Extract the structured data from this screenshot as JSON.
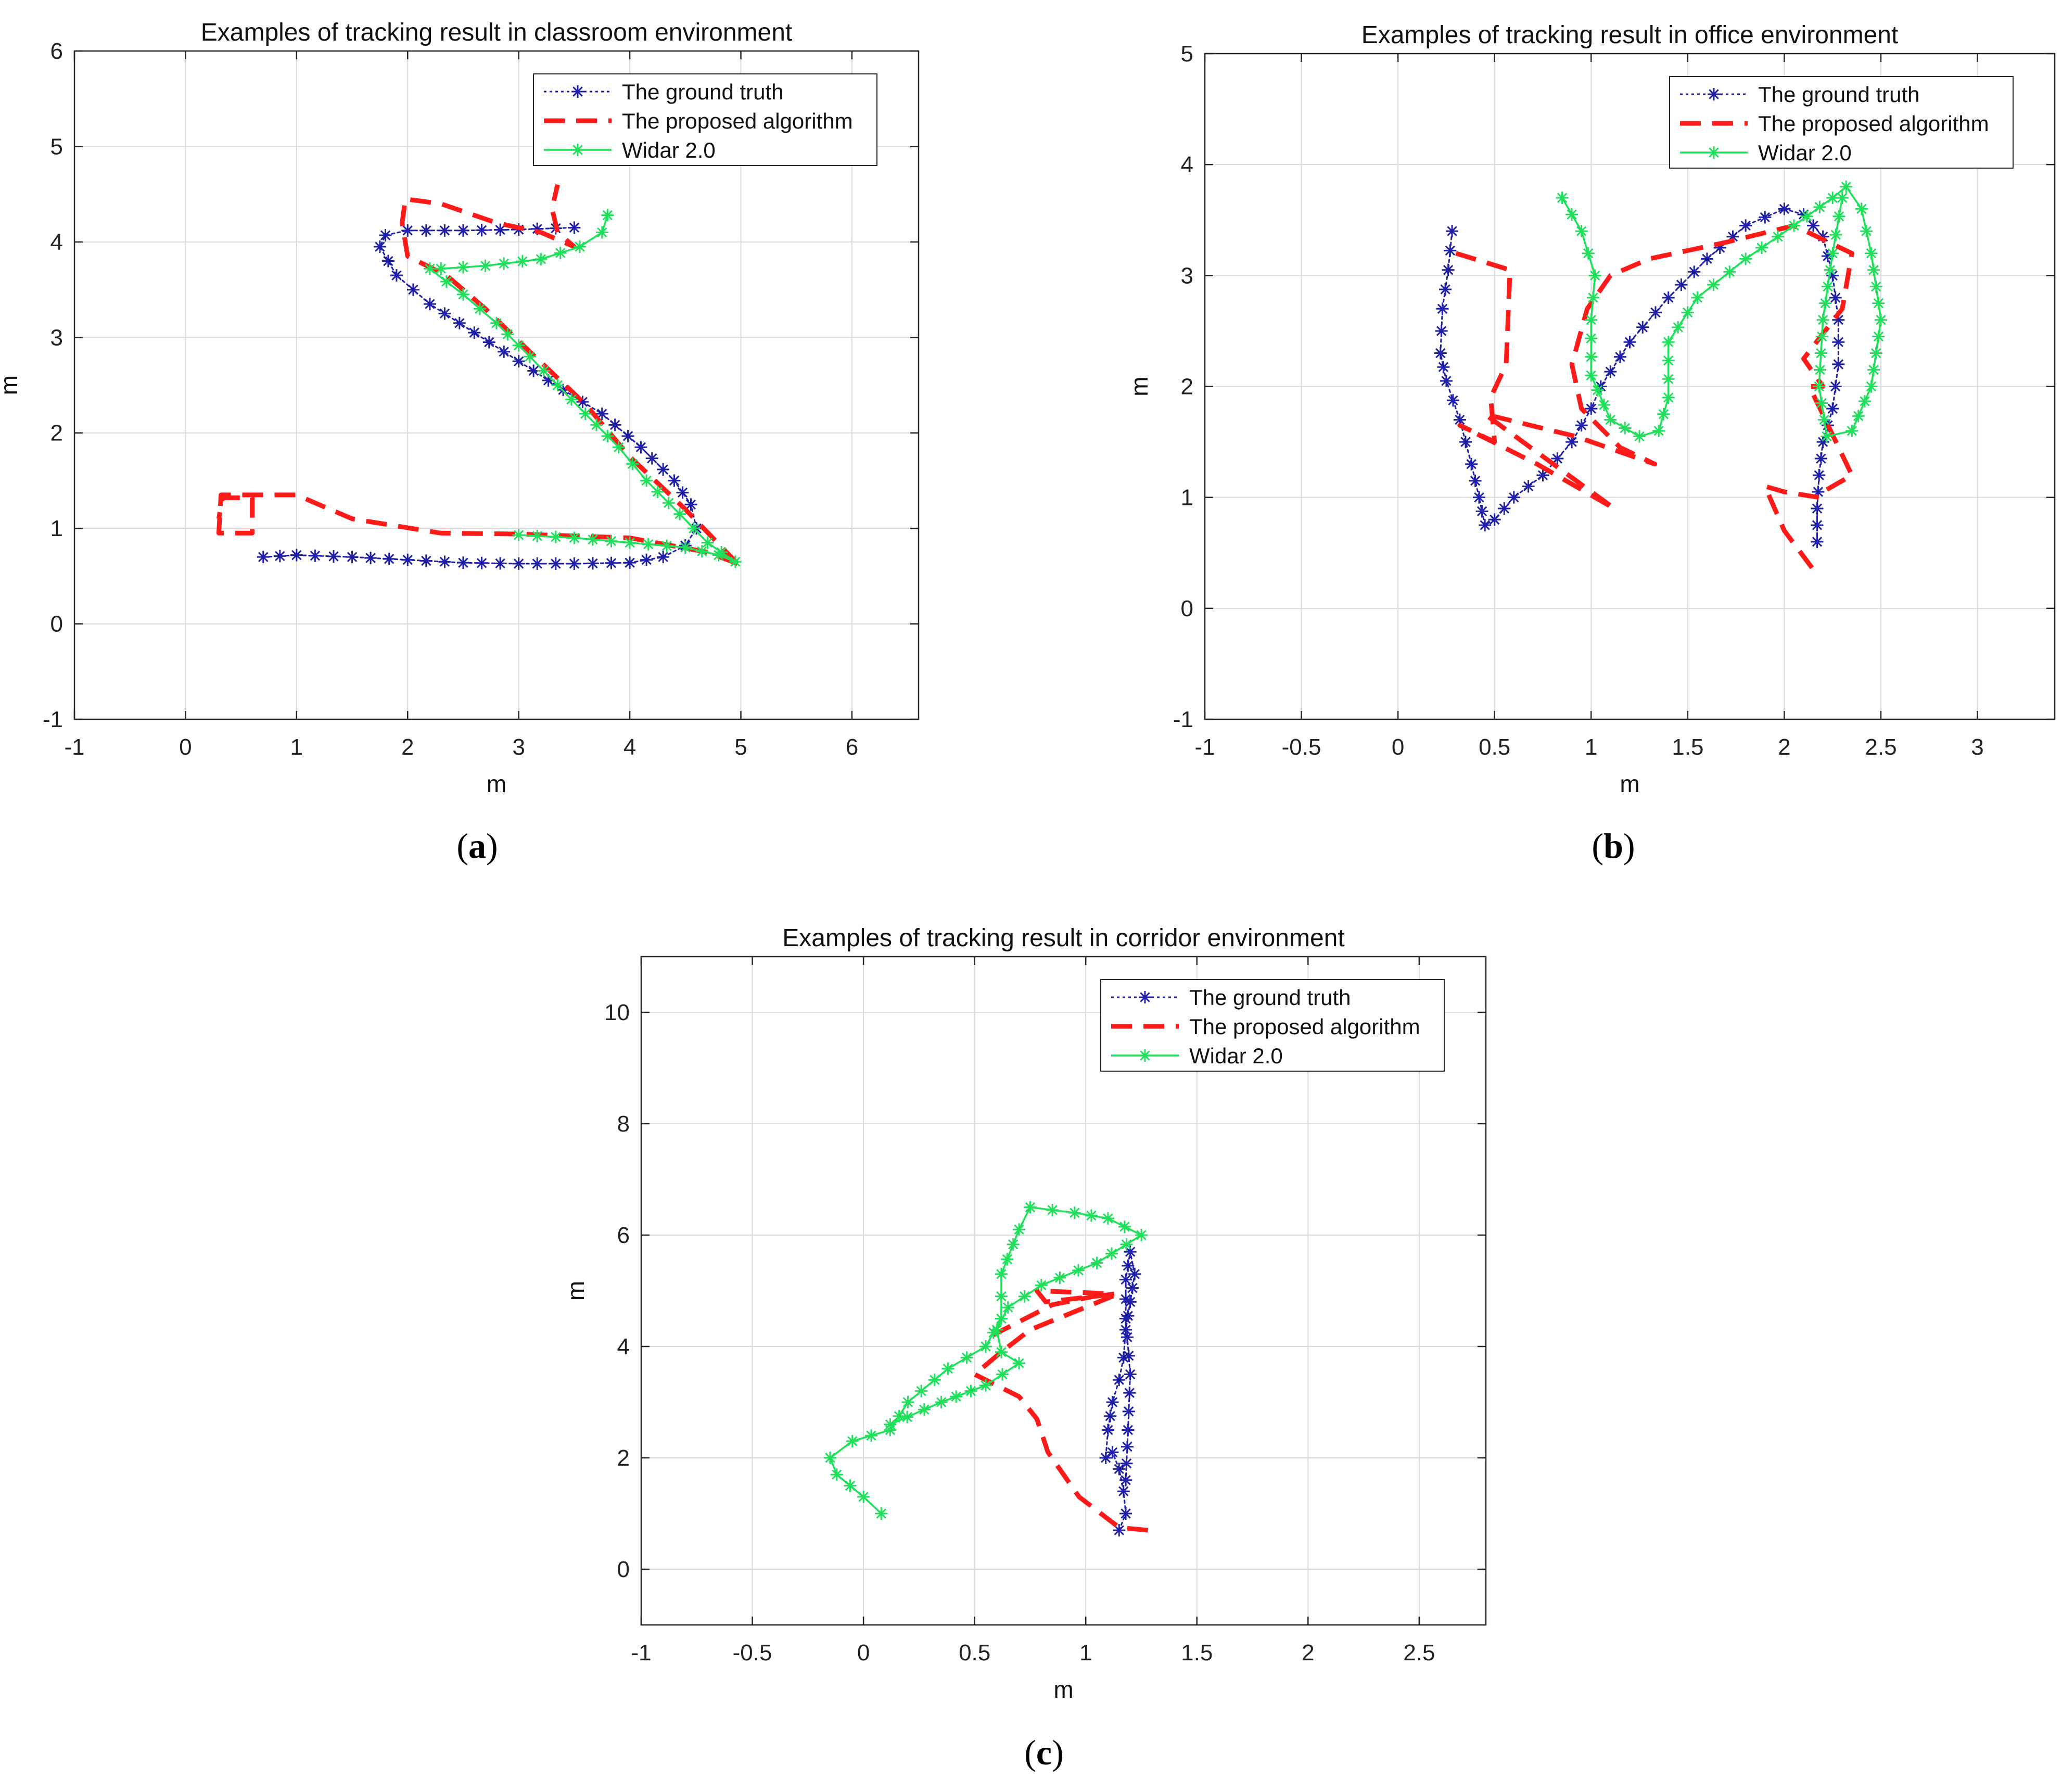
{
  "figure": {
    "subcaptions": [
      {
        "open": "(",
        "letter": "a",
        "close": ")"
      },
      {
        "open": "(",
        "letter": "b",
        "close": ")"
      },
      {
        "open": "(",
        "letter": "c",
        "close": ")"
      }
    ]
  },
  "colors": {
    "ground_truth": "#1f1fa8",
    "proposed": "#ff1a1a",
    "widar": "#1fe05a",
    "grid": "#dadada",
    "axis": "#262626"
  },
  "chart_data": [
    {
      "type": "line",
      "title": "Examples of  tracking result in classroom environment",
      "xlabel": "m",
      "ylabel": "m",
      "xlim": [
        -1,
        6.6
      ],
      "ylim": [
        -1,
        6
      ],
      "xticks": [
        -1,
        0,
        1,
        2,
        3,
        4,
        5,
        6
      ],
      "yticks": [
        -1,
        0,
        1,
        2,
        3,
        4,
        5,
        6
      ],
      "legend": "top-right",
      "series": [
        {
          "name": "The ground truth",
          "style": "dotted-star",
          "color": "#1f1fa8",
          "x": [
            0.7,
            1.0,
            1.5,
            2.0,
            2.5,
            3.0,
            3.5,
            4.0,
            4.3,
            4.5,
            4.6,
            4.55,
            4.4,
            4.1,
            3.75,
            3.4,
            3.0,
            2.6,
            2.2,
            1.9,
            1.75,
            1.8,
            2.0,
            2.5,
            3.0,
            3.5
          ],
          "y": [
            0.7,
            0.72,
            0.7,
            0.67,
            0.64,
            0.63,
            0.63,
            0.64,
            0.7,
            0.82,
            1.0,
            1.25,
            1.5,
            1.85,
            2.2,
            2.45,
            2.75,
            3.05,
            3.35,
            3.65,
            3.95,
            4.07,
            4.12,
            4.12,
            4.13,
            4.15
          ]
        },
        {
          "name": "The proposed algorithm",
          "style": "dashed",
          "color": "#ff1a1a",
          "x": [
            4.97,
            4.7,
            4.0,
            3.0,
            2.3,
            1.5,
            1.0,
            0.32,
            0.3,
            0.6,
            0.6,
            0.33,
            0.3
          ],
          "y": [
            0.63,
            0.75,
            0.9,
            0.94,
            0.95,
            1.1,
            1.35,
            1.35,
            0.95,
            0.95,
            1.32,
            1.32,
            1.1
          ],
          "x2": [
            4.97,
            4.5,
            4.0,
            3.6,
            3.1,
            2.7,
            2.35,
            2.0,
            1.95,
            1.98,
            2.3,
            2.8,
            3.2,
            3.5,
            3.35,
            3.3,
            3.35
          ],
          "y2": [
            0.63,
            1.2,
            1.75,
            2.3,
            2.85,
            3.3,
            3.65,
            3.85,
            4.2,
            4.45,
            4.4,
            4.2,
            4.1,
            3.95,
            4.1,
            4.35,
            4.6
          ]
        },
        {
          "name": "Widar 2.0",
          "style": "solid-star",
          "color": "#1fe05a",
          "x": [
            3.0,
            3.5,
            4.0,
            4.5,
            4.8,
            4.95,
            4.7,
            4.45,
            4.15,
            3.9,
            3.6,
            3.35,
            3.1,
            2.8,
            2.5,
            2.2,
            2.3,
            2.7,
            3.2,
            3.55,
            3.75,
            3.8
          ],
          "y": [
            0.93,
            0.9,
            0.85,
            0.8,
            0.72,
            0.65,
            0.85,
            1.15,
            1.5,
            1.85,
            2.2,
            2.5,
            2.8,
            3.15,
            3.45,
            3.72,
            3.72,
            3.75,
            3.82,
            3.95,
            4.1,
            4.28
          ]
        }
      ]
    },
    {
      "type": "line",
      "title": "Examples of  tracking result in office environment",
      "xlabel": "m",
      "ylabel": "m",
      "xlim": [
        -1,
        3.4
      ],
      "ylim": [
        -1,
        5
      ],
      "xticks": [
        -1,
        -0.5,
        0,
        0.5,
        1,
        1.5,
        2,
        2.5,
        3
      ],
      "yticks": [
        -1,
        0,
        1,
        2,
        3,
        4,
        5
      ],
      "legend": "top-right",
      "series": [
        {
          "name": "The ground truth",
          "style": "dotted-star",
          "color": "#1f1fa8",
          "x": [
            0.28,
            0.26,
            0.23,
            0.22,
            0.25,
            0.32,
            0.38,
            0.42,
            0.45,
            0.5,
            0.6,
            0.75,
            0.9,
            1.0,
            1.05,
            1.2,
            1.4,
            1.6,
            1.8,
            2.0,
            2.1,
            2.2,
            2.25,
            2.28,
            2.28,
            2.25,
            2.2,
            2.18,
            2.17,
            2.17
          ],
          "y": [
            3.4,
            3.05,
            2.7,
            2.3,
            2.05,
            1.7,
            1.3,
            1.0,
            0.75,
            0.8,
            1.0,
            1.2,
            1.5,
            1.8,
            2.0,
            2.4,
            2.8,
            3.15,
            3.45,
            3.6,
            3.55,
            3.35,
            3.0,
            2.6,
            2.2,
            1.8,
            1.5,
            1.2,
            0.9,
            0.6
          ]
        },
        {
          "name": "The proposed algorithm",
          "style": "dashed",
          "color": "#ff1a1a",
          "x": [
            0.3,
            0.58,
            0.56,
            0.48,
            0.5,
            0.32,
            0.72,
            1.12,
            0.45,
            0.92,
            1.33,
            1.15,
            0.95,
            0.9,
            0.98,
            1.1,
            1.3,
            1.7,
            2.05,
            2.35,
            2.3,
            2.1,
            2.2,
            2.13,
            2.35,
            2.2,
            2.18,
            2.0,
            1.9,
            2.0,
            2.15
          ],
          "y": [
            3.2,
            3.05,
            2.2,
            1.9,
            1.5,
            1.65,
            1.3,
            0.9,
            1.75,
            1.55,
            1.3,
            1.45,
            1.8,
            2.2,
            2.7,
            3.0,
            3.15,
            3.3,
            3.45,
            3.2,
            2.7,
            2.25,
            2.0,
            2.0,
            1.2,
            1.05,
            1.0,
            1.05,
            1.1,
            0.7,
            0.35
          ]
        },
        {
          "name": "Widar 2.0",
          "style": "solid-star",
          "color": "#1fe05a",
          "x": [
            0.85,
            0.95,
            1.02,
            1.0,
            1.0,
            1.1,
            1.25,
            1.35,
            1.4,
            1.4,
            1.55,
            1.8,
            2.05,
            2.25,
            2.32,
            2.4,
            2.45,
            2.5,
            2.45,
            2.35,
            2.22,
            2.18,
            2.2,
            2.25,
            2.3
          ],
          "y": [
            3.7,
            3.4,
            3.0,
            2.6,
            2.1,
            1.7,
            1.55,
            1.6,
            1.9,
            2.4,
            2.8,
            3.15,
            3.45,
            3.7,
            3.8,
            3.6,
            3.2,
            2.6,
            2.0,
            1.6,
            1.55,
            2.0,
            2.6,
            3.2,
            3.7
          ]
        }
      ]
    },
    {
      "type": "line",
      "title": "Examples of  tracking result in corridor environment",
      "xlabel": "m",
      "ylabel": "m",
      "xlim": [
        -1,
        2.8
      ],
      "ylim": [
        -1,
        11
      ],
      "xticks": [
        -1,
        -0.5,
        0,
        0.5,
        1,
        1.5,
        2,
        2.5
      ],
      "yticks": [
        0,
        2,
        4,
        6,
        8,
        10
      ],
      "legend": "top-right",
      "series": [
        {
          "name": "The ground truth",
          "style": "dotted-star",
          "color": "#1f1fa8",
          "x": [
            1.15,
            1.18,
            1.17,
            1.15,
            1.12,
            1.09,
            1.1,
            1.12,
            1.15,
            1.17,
            1.18,
            1.2,
            1.22,
            1.2,
            1.18,
            1.18,
            1.2,
            1.19,
            1.18
          ],
          "y": [
            0.7,
            1.0,
            1.4,
            1.8,
            2.1,
            2.0,
            2.5,
            3.0,
            3.4,
            3.8,
            4.3,
            4.8,
            5.3,
            5.7,
            5.2,
            4.5,
            3.5,
            2.5,
            1.6
          ]
        },
        {
          "name": "The proposed algorithm",
          "style": "dashed",
          "color": "#ff1a1a",
          "x": [
            1.28,
            1.15,
            0.97,
            0.83,
            0.78,
            0.7,
            0.55,
            0.5,
            0.62,
            0.75,
            1.15,
            0.82,
            0.78,
            1.1,
            0.85,
            0.58
          ],
          "y": [
            0.7,
            0.75,
            1.3,
            2.1,
            2.7,
            3.1,
            3.4,
            3.5,
            3.9,
            4.3,
            4.95,
            4.8,
            5.0,
            4.95,
            4.75,
            4.2
          ]
        },
        {
          "name": "Widar 2.0",
          "style": "solid-star",
          "color": "#1fe05a",
          "x": [
            0.08,
            0.0,
            -0.12,
            -0.15,
            -0.05,
            0.12,
            0.2,
            0.38,
            0.55,
            0.62,
            0.62,
            0.7,
            0.75,
            0.95,
            1.1,
            1.25,
            1.05,
            0.8,
            0.65,
            0.6,
            0.62,
            0.7,
            0.55,
            0.35,
            0.12
          ],
          "y": [
            1.0,
            1.3,
            1.7,
            2.0,
            2.3,
            2.5,
            3.0,
            3.6,
            4.0,
            4.5,
            5.3,
            6.1,
            6.5,
            6.4,
            6.3,
            6.0,
            5.5,
            5.1,
            4.7,
            4.3,
            3.9,
            3.7,
            3.3,
            3.0,
            2.6
          ]
        }
      ]
    }
  ]
}
